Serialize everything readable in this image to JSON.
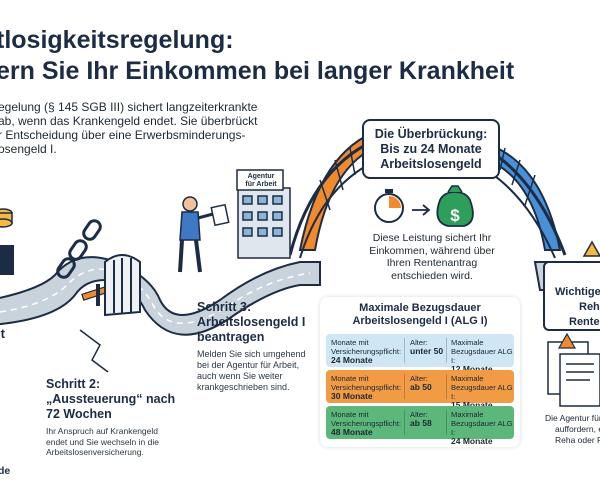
{
  "title": {
    "line1": "tlosigkeitsregelung:",
    "line2": "ern Sie Ihr Einkommen bei langer Krankheit"
  },
  "intro": {
    "lines": [
      "egelung (§ 145 SGB III) sichert langzeiterkrankte",
      "ab, wenn das Krankengeld endet. Sie überbrückt",
      "r Entscheidung über eine Erwerbsminderungs-",
      "osengeld I."
    ]
  },
  "callout": {
    "lines": [
      "Die Überbrückung:",
      "Bis zu 24 Monate",
      "Arbeitslosengeld"
    ]
  },
  "bridge_note": {
    "lines": [
      "Diese Leistung sichert Ihr",
      "Einkommen, während über",
      "Ihren Rentenantrag",
      "entschieden wird."
    ]
  },
  "agency": {
    "lines": [
      "Agentur",
      "für Arbeit"
    ]
  },
  "step1": {
    "tail": "it"
  },
  "step2": {
    "title_lines": [
      "Schritt 2:",
      "„Aussteuerung“ nach",
      "72 Wochen"
    ],
    "desc_lines": [
      "Ihr Anspruch auf Krankengeld",
      "endet und Sie wechseln in die",
      "Arbeitslosenversicherung."
    ]
  },
  "step3": {
    "title_lines": [
      "Schritt 3:",
      "Arbeitslosengeld I",
      "beantragen"
    ],
    "desc_lines": [
      "Melden Sie sich umgehend",
      "bei der Agentur für Arbeit,",
      "auch wenn Sie weiter",
      "krankgeschrieben sind."
    ]
  },
  "table": {
    "title_lines": [
      "Maximale Bezugsdauer",
      "Arbeitslosengeld I (ALG I)"
    ],
    "rows": [
      {
        "color": "#cfe6f5",
        "c1_label": "Monate mit",
        "c1_label2": "Versicherungspflicht:",
        "c1_value": "24 Monate",
        "c2_label": "Alter:",
        "c2_value": "unter 50",
        "c3_label": "Maximale",
        "c3_label2": "Bezugsdauer ALG I:",
        "c3_value": "12 Monate"
      },
      {
        "color": "#f29b45",
        "c1_label": "Monate mit",
        "c1_label2": "Versicherungspflicht:",
        "c1_value": "30 Monate",
        "c2_label": "Alter:",
        "c2_value": "ab 50",
        "c3_label": "Maximale",
        "c3_label2": "Bezugsdauer ALG I:",
        "c3_value": "15 Monate"
      },
      {
        "color": "#5cb87a",
        "c1_label": "Monate mit",
        "c1_label2": "Versicherungspflicht:",
        "c1_value": "48 Monate",
        "c2_label": "Alter:",
        "c2_value": "ab 58",
        "c3_label": "Maximale",
        "c3_label2": "Bezugsdauer ALG I:",
        "c3_value": "24 Monate"
      }
    ]
  },
  "warning": {
    "lines": [
      "Wichtige",
      "Reha",
      "Rente"
    ]
  },
  "right_note": {
    "lines": [
      "Die Agentur für",
      "auffordern, ei",
      "Reha oder Re"
    ]
  },
  "footer": {
    "text": "de"
  },
  "colors": {
    "navy": "#1b2c44",
    "road": "#c9d3dc",
    "bridge_orange": "#f08a2c",
    "bridge_blue": "#4a90d9",
    "money_green": "#2e9e5b"
  },
  "icons": [
    "coins-icon",
    "broken-chain-icon",
    "barrier-icon",
    "gate-icon",
    "person-with-document-icon",
    "agency-building-icon",
    "stopwatch-icon",
    "arrow-right-icon",
    "money-bag-icon",
    "warning-icon",
    "document-icon"
  ]
}
